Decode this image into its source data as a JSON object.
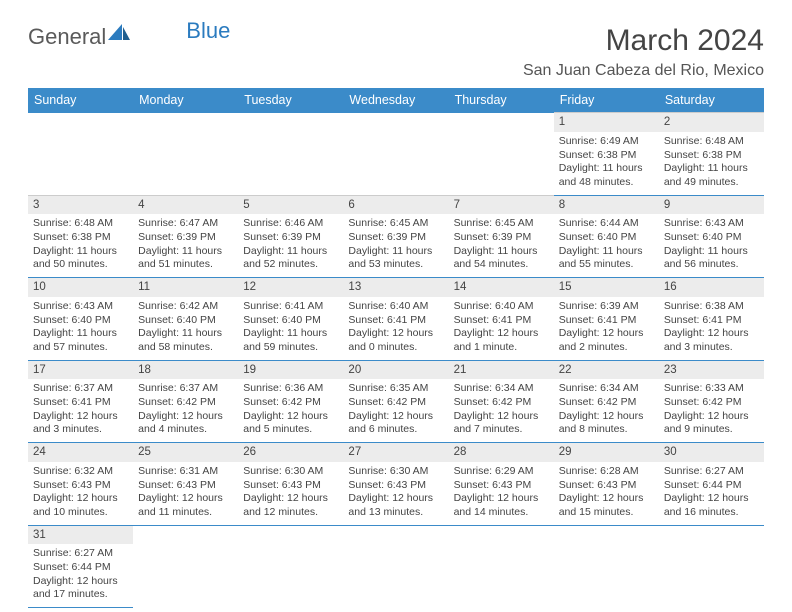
{
  "logo": {
    "part1": "General",
    "part2": "Blue"
  },
  "title": "March 2024",
  "location": "San Juan Cabeza del Rio, Mexico",
  "colors": {
    "header_bg": "#3b8bc9",
    "header_text": "#ffffff",
    "row_divider": "#3b8bc9",
    "daynum_bg": "#ececec"
  },
  "day_headers": [
    "Sunday",
    "Monday",
    "Tuesday",
    "Wednesday",
    "Thursday",
    "Friday",
    "Saturday"
  ],
  "weeks": [
    [
      null,
      null,
      null,
      null,
      null,
      {
        "n": "1",
        "sr": "Sunrise: 6:49 AM",
        "ss": "Sunset: 6:38 PM",
        "d1": "Daylight: 11 hours",
        "d2": "and 48 minutes."
      },
      {
        "n": "2",
        "sr": "Sunrise: 6:48 AM",
        "ss": "Sunset: 6:38 PM",
        "d1": "Daylight: 11 hours",
        "d2": "and 49 minutes."
      }
    ],
    [
      {
        "n": "3",
        "sr": "Sunrise: 6:48 AM",
        "ss": "Sunset: 6:38 PM",
        "d1": "Daylight: 11 hours",
        "d2": "and 50 minutes."
      },
      {
        "n": "4",
        "sr": "Sunrise: 6:47 AM",
        "ss": "Sunset: 6:39 PM",
        "d1": "Daylight: 11 hours",
        "d2": "and 51 minutes."
      },
      {
        "n": "5",
        "sr": "Sunrise: 6:46 AM",
        "ss": "Sunset: 6:39 PM",
        "d1": "Daylight: 11 hours",
        "d2": "and 52 minutes."
      },
      {
        "n": "6",
        "sr": "Sunrise: 6:45 AM",
        "ss": "Sunset: 6:39 PM",
        "d1": "Daylight: 11 hours",
        "d2": "and 53 minutes."
      },
      {
        "n": "7",
        "sr": "Sunrise: 6:45 AM",
        "ss": "Sunset: 6:39 PM",
        "d1": "Daylight: 11 hours",
        "d2": "and 54 minutes."
      },
      {
        "n": "8",
        "sr": "Sunrise: 6:44 AM",
        "ss": "Sunset: 6:40 PM",
        "d1": "Daylight: 11 hours",
        "d2": "and 55 minutes."
      },
      {
        "n": "9",
        "sr": "Sunrise: 6:43 AM",
        "ss": "Sunset: 6:40 PM",
        "d1": "Daylight: 11 hours",
        "d2": "and 56 minutes."
      }
    ],
    [
      {
        "n": "10",
        "sr": "Sunrise: 6:43 AM",
        "ss": "Sunset: 6:40 PM",
        "d1": "Daylight: 11 hours",
        "d2": "and 57 minutes."
      },
      {
        "n": "11",
        "sr": "Sunrise: 6:42 AM",
        "ss": "Sunset: 6:40 PM",
        "d1": "Daylight: 11 hours",
        "d2": "and 58 minutes."
      },
      {
        "n": "12",
        "sr": "Sunrise: 6:41 AM",
        "ss": "Sunset: 6:40 PM",
        "d1": "Daylight: 11 hours",
        "d2": "and 59 minutes."
      },
      {
        "n": "13",
        "sr": "Sunrise: 6:40 AM",
        "ss": "Sunset: 6:41 PM",
        "d1": "Daylight: 12 hours",
        "d2": "and 0 minutes."
      },
      {
        "n": "14",
        "sr": "Sunrise: 6:40 AM",
        "ss": "Sunset: 6:41 PM",
        "d1": "Daylight: 12 hours",
        "d2": "and 1 minute."
      },
      {
        "n": "15",
        "sr": "Sunrise: 6:39 AM",
        "ss": "Sunset: 6:41 PM",
        "d1": "Daylight: 12 hours",
        "d2": "and 2 minutes."
      },
      {
        "n": "16",
        "sr": "Sunrise: 6:38 AM",
        "ss": "Sunset: 6:41 PM",
        "d1": "Daylight: 12 hours",
        "d2": "and 3 minutes."
      }
    ],
    [
      {
        "n": "17",
        "sr": "Sunrise: 6:37 AM",
        "ss": "Sunset: 6:41 PM",
        "d1": "Daylight: 12 hours",
        "d2": "and 3 minutes."
      },
      {
        "n": "18",
        "sr": "Sunrise: 6:37 AM",
        "ss": "Sunset: 6:42 PM",
        "d1": "Daylight: 12 hours",
        "d2": "and 4 minutes."
      },
      {
        "n": "19",
        "sr": "Sunrise: 6:36 AM",
        "ss": "Sunset: 6:42 PM",
        "d1": "Daylight: 12 hours",
        "d2": "and 5 minutes."
      },
      {
        "n": "20",
        "sr": "Sunrise: 6:35 AM",
        "ss": "Sunset: 6:42 PM",
        "d1": "Daylight: 12 hours",
        "d2": "and 6 minutes."
      },
      {
        "n": "21",
        "sr": "Sunrise: 6:34 AM",
        "ss": "Sunset: 6:42 PM",
        "d1": "Daylight: 12 hours",
        "d2": "and 7 minutes."
      },
      {
        "n": "22",
        "sr": "Sunrise: 6:34 AM",
        "ss": "Sunset: 6:42 PM",
        "d1": "Daylight: 12 hours",
        "d2": "and 8 minutes."
      },
      {
        "n": "23",
        "sr": "Sunrise: 6:33 AM",
        "ss": "Sunset: 6:42 PM",
        "d1": "Daylight: 12 hours",
        "d2": "and 9 minutes."
      }
    ],
    [
      {
        "n": "24",
        "sr": "Sunrise: 6:32 AM",
        "ss": "Sunset: 6:43 PM",
        "d1": "Daylight: 12 hours",
        "d2": "and 10 minutes."
      },
      {
        "n": "25",
        "sr": "Sunrise: 6:31 AM",
        "ss": "Sunset: 6:43 PM",
        "d1": "Daylight: 12 hours",
        "d2": "and 11 minutes."
      },
      {
        "n": "26",
        "sr": "Sunrise: 6:30 AM",
        "ss": "Sunset: 6:43 PM",
        "d1": "Daylight: 12 hours",
        "d2": "and 12 minutes."
      },
      {
        "n": "27",
        "sr": "Sunrise: 6:30 AM",
        "ss": "Sunset: 6:43 PM",
        "d1": "Daylight: 12 hours",
        "d2": "and 13 minutes."
      },
      {
        "n": "28",
        "sr": "Sunrise: 6:29 AM",
        "ss": "Sunset: 6:43 PM",
        "d1": "Daylight: 12 hours",
        "d2": "and 14 minutes."
      },
      {
        "n": "29",
        "sr": "Sunrise: 6:28 AM",
        "ss": "Sunset: 6:43 PM",
        "d1": "Daylight: 12 hours",
        "d2": "and 15 minutes."
      },
      {
        "n": "30",
        "sr": "Sunrise: 6:27 AM",
        "ss": "Sunset: 6:44 PM",
        "d1": "Daylight: 12 hours",
        "d2": "and 16 minutes."
      }
    ],
    [
      {
        "n": "31",
        "sr": "Sunrise: 6:27 AM",
        "ss": "Sunset: 6:44 PM",
        "d1": "Daylight: 12 hours",
        "d2": "and 17 minutes."
      },
      null,
      null,
      null,
      null,
      null,
      null
    ]
  ]
}
